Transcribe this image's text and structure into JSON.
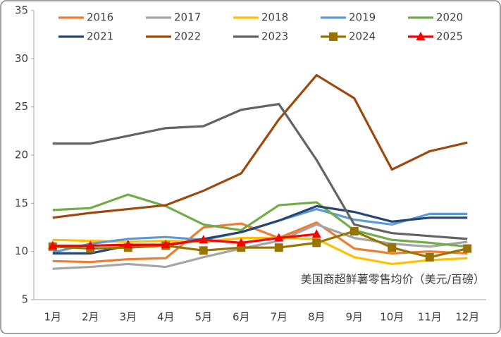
{
  "chart_data": {
    "type": "line",
    "annotation": "美国商超鲜薯零售均价（美元/百磅）",
    "categories": [
      "1月",
      "2月",
      "3月",
      "4月",
      "5月",
      "6月",
      "7月",
      "8月",
      "9月",
      "10月",
      "11月",
      "12月"
    ],
    "ylim": [
      5,
      35
    ],
    "yticks": [
      5,
      10,
      15,
      20,
      25,
      30,
      35
    ],
    "grid": false,
    "series": [
      {
        "name": "2016",
        "color": "#ed7d31",
        "marker": "none",
        "values": [
          9.0,
          8.9,
          9.2,
          9.3,
          12.5,
          12.9,
          11.4,
          13.0,
          10.3,
          9.8,
          10.0,
          9.8
        ]
      },
      {
        "name": "2017",
        "color": "#a5a5a5",
        "marker": "none",
        "values": [
          8.2,
          8.4,
          8.7,
          8.4,
          9.4,
          10.3,
          11.1,
          12.8,
          11.4,
          10.8,
          10.5,
          11.0
        ]
      },
      {
        "name": "2018",
        "color": "#ffc000",
        "marker": "none",
        "values": [
          11.2,
          11.1,
          11.0,
          11.1,
          11.0,
          11.4,
          11.4,
          11.3,
          9.4,
          8.7,
          9.1,
          9.3
        ]
      },
      {
        "name": "2019",
        "color": "#5b9bd5",
        "marker": "none",
        "values": [
          9.9,
          10.8,
          11.3,
          11.5,
          11.2,
          12.0,
          13.2,
          14.4,
          13.3,
          12.8,
          13.9,
          13.9
        ]
      },
      {
        "name": "2020",
        "color": "#70ad47",
        "marker": "none",
        "values": [
          14.3,
          14.5,
          15.9,
          14.7,
          12.8,
          12.2,
          14.8,
          15.1,
          12.2,
          11.2,
          10.9,
          10.5
        ]
      },
      {
        "name": "2021",
        "color": "#264478",
        "marker": "none",
        "values": [
          9.8,
          9.8,
          10.6,
          10.6,
          11.3,
          12.0,
          13.2,
          14.7,
          14.1,
          13.1,
          13.5,
          13.5
        ]
      },
      {
        "name": "2022",
        "color": "#9e480e",
        "marker": "none",
        "values": [
          13.5,
          14.0,
          14.4,
          14.8,
          16.3,
          18.1,
          23.7,
          28.3,
          25.9,
          18.5,
          20.4,
          21.3
        ]
      },
      {
        "name": "2023",
        "color": "#636363",
        "marker": "none",
        "values": [
          21.2,
          21.2,
          22.0,
          22.8,
          23.0,
          24.7,
          25.3,
          19.5,
          12.8,
          11.9,
          11.6,
          11.3
        ]
      },
      {
        "name": "2024",
        "color": "#997300",
        "marker": "square",
        "values": [
          10.5,
          10.3,
          10.4,
          10.6,
          10.1,
          10.4,
          10.4,
          10.9,
          12.1,
          10.4,
          9.4,
          10.3
        ]
      },
      {
        "name": "2025",
        "color": "#ff0000",
        "marker": "triangle",
        "values": [
          10.6,
          10.6,
          10.7,
          10.7,
          11.2,
          10.9,
          11.4,
          11.8,
          null,
          null,
          null,
          null
        ]
      }
    ]
  }
}
